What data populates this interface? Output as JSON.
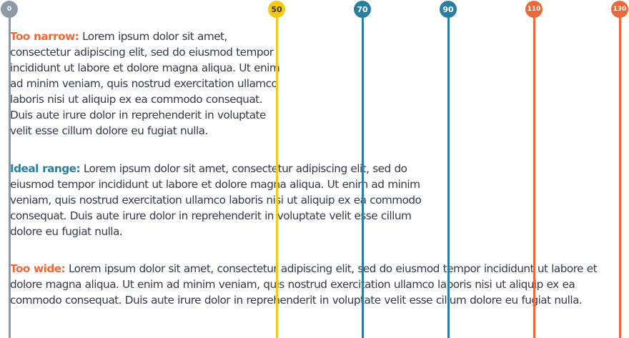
{
  "guides": [
    {
      "label": "0",
      "color": "#8f9aa6",
      "text_color": "#ffffff",
      "size": "small"
    },
    {
      "label": "50",
      "color": "#f5c916",
      "text_color": "#3a3a3a",
      "size": "med"
    },
    {
      "label": "70",
      "color": "#2a7ea0",
      "text_color": "#ffffff",
      "size": "med"
    },
    {
      "label": "90",
      "color": "#2a7ea0",
      "text_color": "#ffffff",
      "size": "med"
    },
    {
      "label": "110",
      "color": "#ea6a3c",
      "text_color": "#ffffff",
      "size": "small"
    },
    {
      "label": "130",
      "color": "#ea6a3c",
      "text_color": "#ffffff",
      "size": "small"
    }
  ],
  "paragraphs": [
    {
      "label": "Too narrow:",
      "label_color": "#ea6a3c",
      "text": "Lorem ipsum dolor sit amet, consectetur adipiscing elit, sed do eiusmod tempor incididunt ut labore et dolore magna aliqua. Ut enim ad minim veniam, quis nostrud exercitation ullamco laboris nisi ut aliquip ex ea commodo consequat. Duis aute irure dolor in reprehenderit in voluptate velit esse cillum dolore eu fugiat nulla."
    },
    {
      "label": "Ideal range:",
      "label_color": "#2a7ea0",
      "text": "Lorem ipsum dolor sit amet, consectetur adipiscing elit, sed do eiusmod tempor incididunt ut labore et dolore magna aliqua. Ut enim ad minim veniam, quis nostrud exercitation ullamco laboris nisi ut aliquip ex ea commodo consequat. Duis aute irure dolor in reprehenderit in voluptate velit esse cillum dolore eu fugiat nulla."
    },
    {
      "label": "Too wide:",
      "label_color": "#ea6a3c",
      "text": "Lorem ipsum dolor sit amet, consectetur adipiscing elit, sed do eiusmod tempor incididunt ut labore et dolore magna aliqua. Ut enim ad minim veniam, quis nostrud exercitation ullamco laboris nisi ut aliquip ex ea commodo consequat. Duis aute irure dolor in reprehenderit in voluptate velit esse cillum dolore eu fugiat nulla."
    }
  ]
}
